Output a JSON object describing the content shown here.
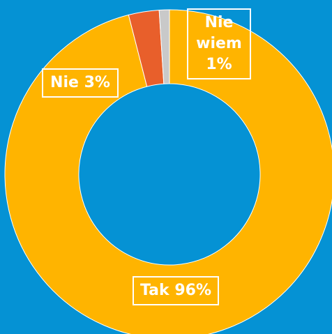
{
  "chart_data": {
    "type": "donut",
    "categories": [
      "Tak",
      "Nie",
      "Nie wiem"
    ],
    "values": [
      96,
      3,
      1
    ],
    "value_labels": [
      "96%",
      "3%",
      "1%"
    ],
    "colors": [
      "#ffb400",
      "#e85f2b",
      "#c9c9c9"
    ]
  }
}
